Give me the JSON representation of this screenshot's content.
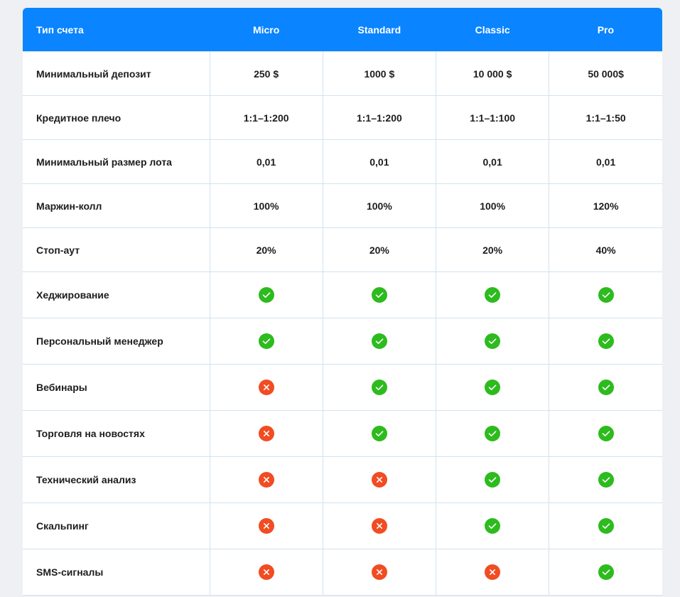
{
  "table": {
    "header": [
      "Тип счета",
      "Micro",
      "Standard",
      "Classic",
      "Pro"
    ],
    "rows": [
      [
        "Минимальный депозит",
        "250 $",
        "1000 $",
        "10 000 $",
        "50 000$"
      ],
      [
        "Кредитное плечо",
        "1:1–1:200",
        "1:1–1:200",
        "1:1–1:100",
        "1:1–1:50"
      ],
      [
        "Минимальный размер лота",
        "0,01",
        "0,01",
        "0,01",
        "0,01"
      ],
      [
        "Маржин-колл",
        "100%",
        "100%",
        "100%",
        "120%"
      ],
      [
        "Стоп-аут",
        "20%",
        "20%",
        "20%",
        "40%"
      ],
      [
        "Хеджирование",
        true,
        true,
        true,
        true
      ],
      [
        "Персональный менеджер",
        true,
        true,
        true,
        true
      ],
      [
        "Вебинары",
        false,
        true,
        true,
        true
      ],
      [
        "Торговля на новостях",
        false,
        true,
        true,
        true
      ],
      [
        "Технический анализ",
        false,
        false,
        true,
        true
      ],
      [
        "Скальпинг",
        false,
        false,
        true,
        true
      ],
      [
        "SMS-сигналы",
        false,
        false,
        false,
        true
      ]
    ]
  }
}
